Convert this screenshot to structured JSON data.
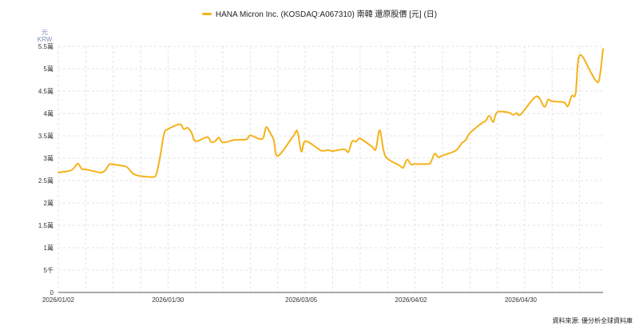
{
  "legend": {
    "series_name": "HANA Micron Inc. (KOSDAQ:A067310) 南韓 還原股價 [元] (日)"
  },
  "axis_unit": {
    "line1": "元",
    "line2": "KRW"
  },
  "source": "資料來源: 優分析全球資料庫",
  "colors": {
    "line": "#f5b21a",
    "grid": "#e3e3e3",
    "axis": "#555555"
  },
  "chart_data": {
    "type": "line",
    "title": "HANA Micron Inc. (KOSDAQ:A067310) 南韓 還原股價 [元] (日)",
    "ylabel": "元 KRW",
    "ylim": [
      0,
      55000
    ],
    "yticks": [
      {
        "value": 0,
        "label": "0"
      },
      {
        "value": 5000,
        "label": "5千"
      },
      {
        "value": 10000,
        "label": "1萬"
      },
      {
        "value": 15000,
        "label": "1.5萬"
      },
      {
        "value": 20000,
        "label": "2萬"
      },
      {
        "value": 25000,
        "label": "2.5萬"
      },
      {
        "value": 30000,
        "label": "3萬"
      },
      {
        "value": 35000,
        "label": "3.5萬"
      },
      {
        "value": 40000,
        "label": "4萬"
      },
      {
        "value": 45000,
        "label": "4.5萬"
      },
      {
        "value": 50000,
        "label": "5萬"
      },
      {
        "value": 55000,
        "label": "5.5萬"
      }
    ],
    "xlim": [
      "2026-01-02",
      "2026-05-21"
    ],
    "xticks": [
      "2026/01/02",
      "2026/01/30",
      "2026/03/05",
      "2026/04/02",
      "2026/04/30"
    ],
    "grid": true,
    "series": [
      {
        "name": "HANA Micron Inc. (KOSDAQ:A067310) 南韓 還原股價 [元] (日)",
        "x": [
          "2026-01-02",
          "2026-01-05",
          "2026-01-06",
          "2026-01-07",
          "2026-01-08",
          "2026-01-09",
          "2026-01-12",
          "2026-01-13",
          "2026-01-14",
          "2026-01-15",
          "2026-01-16",
          "2026-01-19",
          "2026-01-20",
          "2026-01-21",
          "2026-01-22",
          "2026-01-23",
          "2026-01-26",
          "2026-01-27",
          "2026-01-28",
          "2026-01-29",
          "2026-01-30",
          "2026-02-02",
          "2026-02-03",
          "2026-02-04",
          "2026-02-05",
          "2026-02-06",
          "2026-02-09",
          "2026-02-10",
          "2026-02-11",
          "2026-02-12",
          "2026-02-13",
          "2026-02-16",
          "2026-02-19",
          "2026-02-20",
          "2026-02-23",
          "2026-02-24",
          "2026-02-25",
          "2026-02-26",
          "2026-02-27",
          "2026-03-03",
          "2026-03-04",
          "2026-03-05",
          "2026-03-06",
          "2026-03-09",
          "2026-03-10",
          "2026-03-11",
          "2026-03-12",
          "2026-03-13",
          "2026-03-16",
          "2026-03-17",
          "2026-03-18",
          "2026-03-19",
          "2026-03-20",
          "2026-03-23",
          "2026-03-24",
          "2026-03-25",
          "2026-03-26",
          "2026-03-27",
          "2026-03-30",
          "2026-03-31",
          "2026-04-01",
          "2026-04-02",
          "2026-04-03",
          "2026-04-06",
          "2026-04-07",
          "2026-04-08",
          "2026-04-09",
          "2026-04-10",
          "2026-04-13",
          "2026-04-14",
          "2026-04-15",
          "2026-04-16",
          "2026-04-17",
          "2026-04-20",
          "2026-04-21",
          "2026-04-22",
          "2026-04-23",
          "2026-04-24",
          "2026-04-27",
          "2026-04-28",
          "2026-04-29",
          "2026-04-30",
          "2026-05-04",
          "2026-05-06",
          "2026-05-07",
          "2026-05-08",
          "2026-05-11",
          "2026-05-12",
          "2026-05-13",
          "2026-05-14",
          "2026-05-15",
          "2026-05-18",
          "2026-05-19",
          "2026-05-20",
          "2026-05-21"
        ],
        "values": [
          26800,
          27200,
          27800,
          28800,
          27600,
          27500,
          26900,
          26800,
          27300,
          28600,
          28600,
          28200,
          27600,
          26600,
          26200,
          26000,
          25800,
          26400,
          30500,
          35500,
          36500,
          37600,
          36500,
          36800,
          35700,
          33800,
          34700,
          33600,
          33800,
          34600,
          33500,
          34100,
          34200,
          35100,
          34300,
          36900,
          35800,
          34000,
          30500,
          35000,
          36000,
          31500,
          33800,
          32300,
          31700,
          31700,
          31800,
          31600,
          32000,
          31400,
          33800,
          33700,
          34400,
          32600,
          32000,
          36300,
          31700,
          29900,
          28400,
          27900,
          29700,
          28600,
          28700,
          28700,
          29000,
          31000,
          30200,
          30600,
          31500,
          32200,
          33400,
          34100,
          35600,
          37800,
          38300,
          39500,
          38100,
          40300,
          40200,
          39700,
          40100,
          39800,
          43800,
          41500,
          43100,
          42700,
          42500,
          41600,
          43900,
          44500,
          53000,
          49000,
          47500,
          47500,
          54400
        ]
      }
    ]
  }
}
